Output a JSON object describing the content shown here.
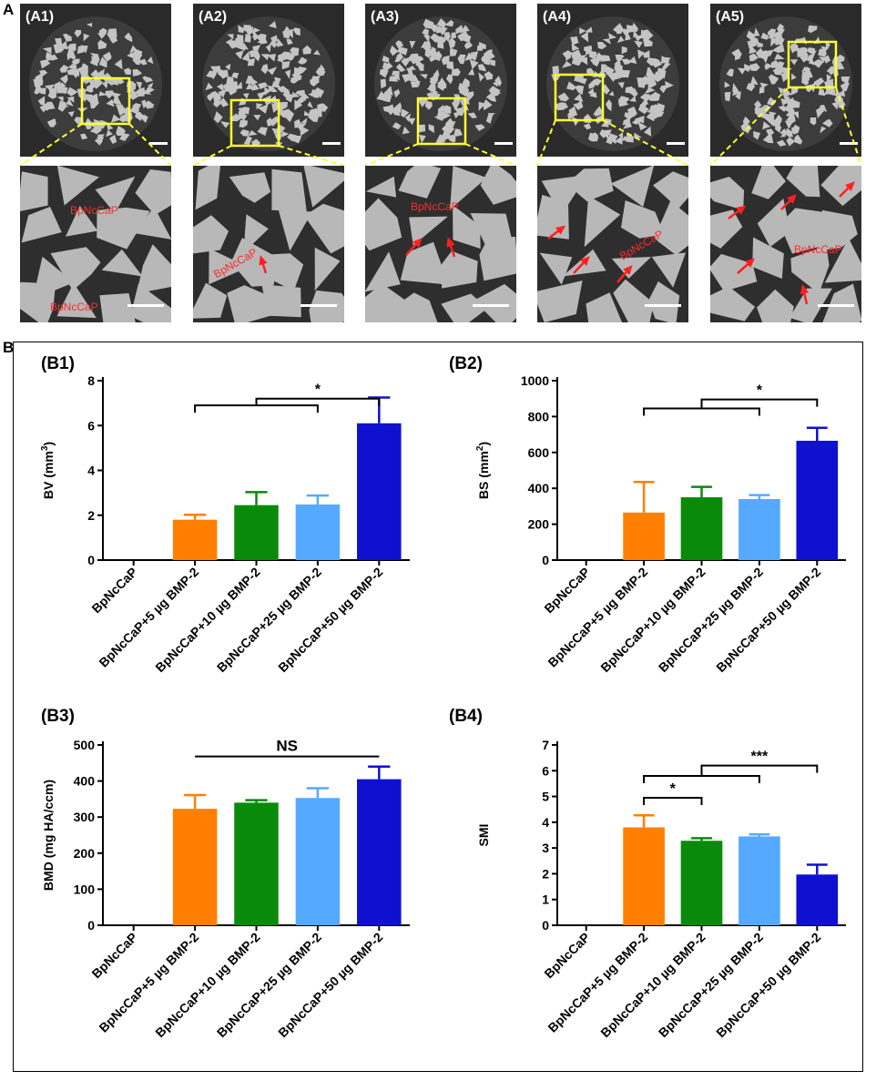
{
  "panelA": {
    "letter": "A",
    "images": [
      {
        "label": "(A1)",
        "zoom_labels": [
          "BpNcCaP",
          "BpNcCaP"
        ]
      },
      {
        "label": "(A2)",
        "zoom_labels": [
          "BpNcCaP"
        ]
      },
      {
        "label": "(A3)",
        "zoom_labels": [
          "BpNcCaP"
        ]
      },
      {
        "label": "(A4)",
        "zoom_labels": [
          "BpNcCaP"
        ]
      },
      {
        "label": "(A5)",
        "zoom_labels": [
          "BpNcCaP"
        ]
      }
    ],
    "colors": {
      "box": "#ffff33",
      "arrow": "#ff2020",
      "label": "#ff2a2a"
    }
  },
  "panelB": {
    "letter": "B"
  },
  "chart_data": [
    {
      "panel": "(B1)",
      "type": "bar",
      "categories": [
        "BpNcCaP",
        "BpNcCaP+5 µg BMP-2",
        "BpNcCaP+10 µg BMP-2",
        "BpNcCaP+25 µg BMP-2",
        "BpNcCaP+50 µg BMP-2"
      ],
      "values": [
        0,
        1.8,
        2.45,
        2.48,
        6.1
      ],
      "errors": [
        0,
        0.22,
        0.58,
        0.4,
        1.15
      ],
      "ylabel_base": "BV (mm",
      "ylabel_sup": "3",
      "ylabel_end": ")",
      "ylim": [
        0,
        8
      ],
      "yticks": [
        "0",
        "2",
        "4",
        "6",
        "8"
      ],
      "significance": [
        {
          "label": "*",
          "type": "bracket-split",
          "from": [
            1,
            3
          ],
          "to": 4,
          "level": 7.2,
          "stem_level": 6.9
        }
      ],
      "colors": [
        "#ff8000",
        "#ff8000",
        "#0a8a0a",
        "#55aaff",
        "#1010d0"
      ]
    },
    {
      "panel": "(B2)",
      "type": "bar",
      "categories": [
        "BpNcCaP",
        "BpNcCaP+5 µg BMP-2",
        "BpNcCaP+10 µg BMP-2",
        "BpNcCaP+25 µg BMP-2",
        "BpNcCaP+50 µg BMP-2"
      ],
      "values": [
        0,
        265,
        350,
        340,
        665
      ],
      "errors": [
        0,
        170,
        58,
        22,
        72
      ],
      "ylabel_base": "BS (mm",
      "ylabel_sup": "2",
      "ylabel_end": ")",
      "ylim": [
        0,
        1000
      ],
      "yticks": [
        "0",
        "200",
        "400",
        "600",
        "800",
        "1000"
      ],
      "significance": [
        {
          "label": "*",
          "type": "bracket-split",
          "from": [
            1,
            3
          ],
          "to": 4,
          "level": 895,
          "stem_level": 845
        }
      ],
      "colors": [
        "#ff8000",
        "#ff8000",
        "#0a8a0a",
        "#55aaff",
        "#1010d0"
      ]
    },
    {
      "panel": "(B3)",
      "type": "bar",
      "categories": [
        "BpNcCaP",
        "BpNcCaP+5 µg BMP-2",
        "BpNcCaP+10 µg BMP-2",
        "BpNcCaP+25 µg BMP-2",
        "BpNcCaP+50 µg BMP-2"
      ],
      "values": [
        0,
        323,
        340,
        353,
        405
      ],
      "errors": [
        0,
        38,
        7,
        27,
        35
      ],
      "ylabel_base": "BMD (mg HA/ccm)",
      "ylabel_sup": "",
      "ylabel_end": "",
      "ylim": [
        0,
        500
      ],
      "yticks": [
        "0",
        "100",
        "200",
        "300",
        "400",
        "500"
      ],
      "significance": [
        {
          "label": "NS",
          "type": "line",
          "from": 1,
          "to": 4,
          "level": 468
        }
      ],
      "colors": [
        "#ff8000",
        "#ff8000",
        "#0a8a0a",
        "#55aaff",
        "#1010d0"
      ]
    },
    {
      "panel": "(B4)",
      "type": "bar",
      "categories": [
        "BpNcCaP",
        "BpNcCaP+5 µg BMP-2",
        "BpNcCaP+10 µg BMP-2",
        "BpNcCaP+25 µg BMP-2",
        "BpNcCaP+50 µg BMP-2"
      ],
      "values": [
        0,
        3.8,
        3.28,
        3.45,
        1.97
      ],
      "errors": [
        0,
        0.47,
        0.1,
        0.08,
        0.38
      ],
      "ylabel_base": "SMI",
      "ylabel_sup": "",
      "ylabel_end": "",
      "ylim": [
        0,
        7
      ],
      "yticks": [
        "0",
        "1",
        "2",
        "3",
        "4",
        "5",
        "6",
        "7"
      ],
      "significance": [
        {
          "label": "*",
          "type": "bracket",
          "from": 1,
          "to": 2,
          "level": 4.95
        },
        {
          "label": "***",
          "type": "bracket-split",
          "from": [
            1,
            3
          ],
          "to": 4,
          "level": 6.2,
          "stem_level": 5.8
        }
      ],
      "colors": [
        "#ff8000",
        "#ff8000",
        "#0a8a0a",
        "#55aaff",
        "#1010d0"
      ]
    }
  ]
}
